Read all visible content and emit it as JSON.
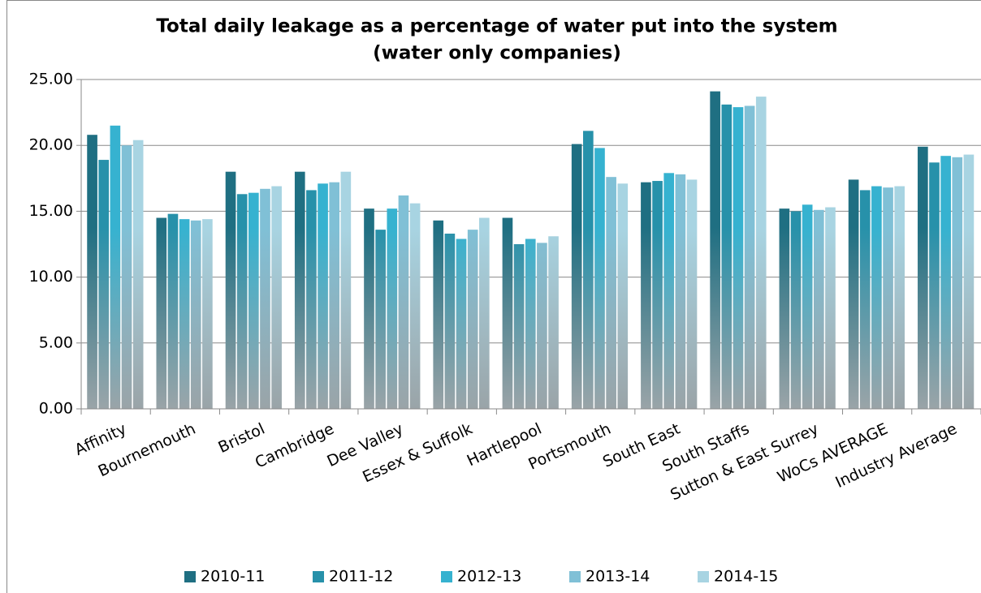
{
  "chart_data": {
    "type": "bar",
    "title": [
      "Total daily leakage as a percentage of water put into the system",
      "(water only companies)"
    ],
    "categories": [
      "Affinity",
      "Bournemouth",
      "Bristol",
      "Cambridge",
      "Dee Valley",
      "Essex & Suffolk",
      "Hartlepool",
      "Portsmouth",
      "South East",
      "South Staffs",
      "Sutton & East Surrey",
      "WoCs AVERAGE",
      "Industry Average"
    ],
    "series": [
      {
        "name": "2010-11",
        "color": "#1f6f82",
        "values": [
          20.8,
          14.5,
          18.0,
          18.0,
          15.2,
          14.3,
          14.5,
          20.1,
          17.2,
          24.1,
          15.2,
          17.4,
          19.9
        ]
      },
      {
        "name": "2011-12",
        "color": "#2791aa",
        "values": [
          18.9,
          14.8,
          16.3,
          16.6,
          13.6,
          13.3,
          12.5,
          21.1,
          17.3,
          23.1,
          15.0,
          16.6,
          18.7
        ]
      },
      {
        "name": "2012-13",
        "color": "#36b2d0",
        "values": [
          21.5,
          14.4,
          16.4,
          17.1,
          15.2,
          12.9,
          12.9,
          19.8,
          17.9,
          22.9,
          15.5,
          16.9,
          19.2
        ]
      },
      {
        "name": "2013-14",
        "color": "#80c0d6",
        "values": [
          20.0,
          14.3,
          16.7,
          17.2,
          16.2,
          13.6,
          12.6,
          17.6,
          17.8,
          23.0,
          15.1,
          16.8,
          19.1
        ]
      },
      {
        "name": "2014-15",
        "color": "#a8d4e2",
        "values": [
          20.4,
          14.4,
          16.9,
          18.0,
          15.6,
          14.5,
          13.1,
          17.1,
          17.4,
          23.7,
          15.3,
          16.9,
          19.3
        ]
      }
    ],
    "ylim": [
      0,
      25
    ],
    "yticks": [
      {
        "value": 0,
        "label": "0.00"
      },
      {
        "value": 5,
        "label": "5.00"
      },
      {
        "value": 10,
        "label": "10.00"
      },
      {
        "value": 15,
        "label": "15.00"
      },
      {
        "value": 20,
        "label": "20.00"
      },
      {
        "value": 25,
        "label": "25.00"
      }
    ],
    "grid": true,
    "legend": "bottom"
  }
}
